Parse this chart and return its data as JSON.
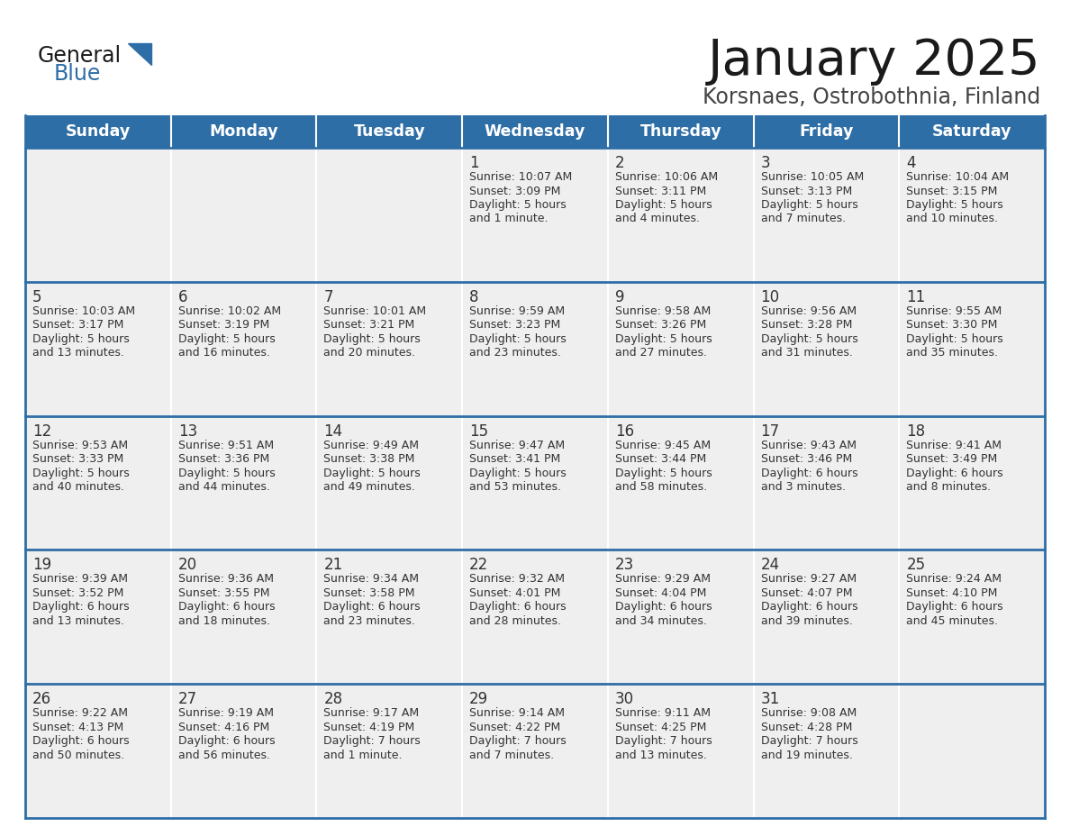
{
  "title": "January 2025",
  "subtitle": "Korsnaes, Ostrobothnia, Finland",
  "days_of_week": [
    "Sunday",
    "Monday",
    "Tuesday",
    "Wednesday",
    "Thursday",
    "Friday",
    "Saturday"
  ],
  "header_bg": "#2E6EA6",
  "header_text": "#FFFFFF",
  "row_bg": "#EFEFEF",
  "cell_text": "#333333",
  "divider_color": "#2E6EA6",
  "title_color": "#1a1a1a",
  "subtitle_color": "#444444",
  "logo_general_color": "#1a1a1a",
  "logo_blue_color": "#2E6EA6",
  "calendar": [
    [
      {
        "day": "",
        "info": ""
      },
      {
        "day": "",
        "info": ""
      },
      {
        "day": "",
        "info": ""
      },
      {
        "day": "1",
        "info": "Sunrise: 10:07 AM\nSunset: 3:09 PM\nDaylight: 5 hours\nand 1 minute."
      },
      {
        "day": "2",
        "info": "Sunrise: 10:06 AM\nSunset: 3:11 PM\nDaylight: 5 hours\nand 4 minutes."
      },
      {
        "day": "3",
        "info": "Sunrise: 10:05 AM\nSunset: 3:13 PM\nDaylight: 5 hours\nand 7 minutes."
      },
      {
        "day": "4",
        "info": "Sunrise: 10:04 AM\nSunset: 3:15 PM\nDaylight: 5 hours\nand 10 minutes."
      }
    ],
    [
      {
        "day": "5",
        "info": "Sunrise: 10:03 AM\nSunset: 3:17 PM\nDaylight: 5 hours\nand 13 minutes."
      },
      {
        "day": "6",
        "info": "Sunrise: 10:02 AM\nSunset: 3:19 PM\nDaylight: 5 hours\nand 16 minutes."
      },
      {
        "day": "7",
        "info": "Sunrise: 10:01 AM\nSunset: 3:21 PM\nDaylight: 5 hours\nand 20 minutes."
      },
      {
        "day": "8",
        "info": "Sunrise: 9:59 AM\nSunset: 3:23 PM\nDaylight: 5 hours\nand 23 minutes."
      },
      {
        "day": "9",
        "info": "Sunrise: 9:58 AM\nSunset: 3:26 PM\nDaylight: 5 hours\nand 27 minutes."
      },
      {
        "day": "10",
        "info": "Sunrise: 9:56 AM\nSunset: 3:28 PM\nDaylight: 5 hours\nand 31 minutes."
      },
      {
        "day": "11",
        "info": "Sunrise: 9:55 AM\nSunset: 3:30 PM\nDaylight: 5 hours\nand 35 minutes."
      }
    ],
    [
      {
        "day": "12",
        "info": "Sunrise: 9:53 AM\nSunset: 3:33 PM\nDaylight: 5 hours\nand 40 minutes."
      },
      {
        "day": "13",
        "info": "Sunrise: 9:51 AM\nSunset: 3:36 PM\nDaylight: 5 hours\nand 44 minutes."
      },
      {
        "day": "14",
        "info": "Sunrise: 9:49 AM\nSunset: 3:38 PM\nDaylight: 5 hours\nand 49 minutes."
      },
      {
        "day": "15",
        "info": "Sunrise: 9:47 AM\nSunset: 3:41 PM\nDaylight: 5 hours\nand 53 minutes."
      },
      {
        "day": "16",
        "info": "Sunrise: 9:45 AM\nSunset: 3:44 PM\nDaylight: 5 hours\nand 58 minutes."
      },
      {
        "day": "17",
        "info": "Sunrise: 9:43 AM\nSunset: 3:46 PM\nDaylight: 6 hours\nand 3 minutes."
      },
      {
        "day": "18",
        "info": "Sunrise: 9:41 AM\nSunset: 3:49 PM\nDaylight: 6 hours\nand 8 minutes."
      }
    ],
    [
      {
        "day": "19",
        "info": "Sunrise: 9:39 AM\nSunset: 3:52 PM\nDaylight: 6 hours\nand 13 minutes."
      },
      {
        "day": "20",
        "info": "Sunrise: 9:36 AM\nSunset: 3:55 PM\nDaylight: 6 hours\nand 18 minutes."
      },
      {
        "day": "21",
        "info": "Sunrise: 9:34 AM\nSunset: 3:58 PM\nDaylight: 6 hours\nand 23 minutes."
      },
      {
        "day": "22",
        "info": "Sunrise: 9:32 AM\nSunset: 4:01 PM\nDaylight: 6 hours\nand 28 minutes."
      },
      {
        "day": "23",
        "info": "Sunrise: 9:29 AM\nSunset: 4:04 PM\nDaylight: 6 hours\nand 34 minutes."
      },
      {
        "day": "24",
        "info": "Sunrise: 9:27 AM\nSunset: 4:07 PM\nDaylight: 6 hours\nand 39 minutes."
      },
      {
        "day": "25",
        "info": "Sunrise: 9:24 AM\nSunset: 4:10 PM\nDaylight: 6 hours\nand 45 minutes."
      }
    ],
    [
      {
        "day": "26",
        "info": "Sunrise: 9:22 AM\nSunset: 4:13 PM\nDaylight: 6 hours\nand 50 minutes."
      },
      {
        "day": "27",
        "info": "Sunrise: 9:19 AM\nSunset: 4:16 PM\nDaylight: 6 hours\nand 56 minutes."
      },
      {
        "day": "28",
        "info": "Sunrise: 9:17 AM\nSunset: 4:19 PM\nDaylight: 7 hours\nand 1 minute."
      },
      {
        "day": "29",
        "info": "Sunrise: 9:14 AM\nSunset: 4:22 PM\nDaylight: 7 hours\nand 7 minutes."
      },
      {
        "day": "30",
        "info": "Sunrise: 9:11 AM\nSunset: 4:25 PM\nDaylight: 7 hours\nand 13 minutes."
      },
      {
        "day": "31",
        "info": "Sunrise: 9:08 AM\nSunset: 4:28 PM\nDaylight: 7 hours\nand 19 minutes."
      },
      {
        "day": "",
        "info": ""
      }
    ]
  ]
}
